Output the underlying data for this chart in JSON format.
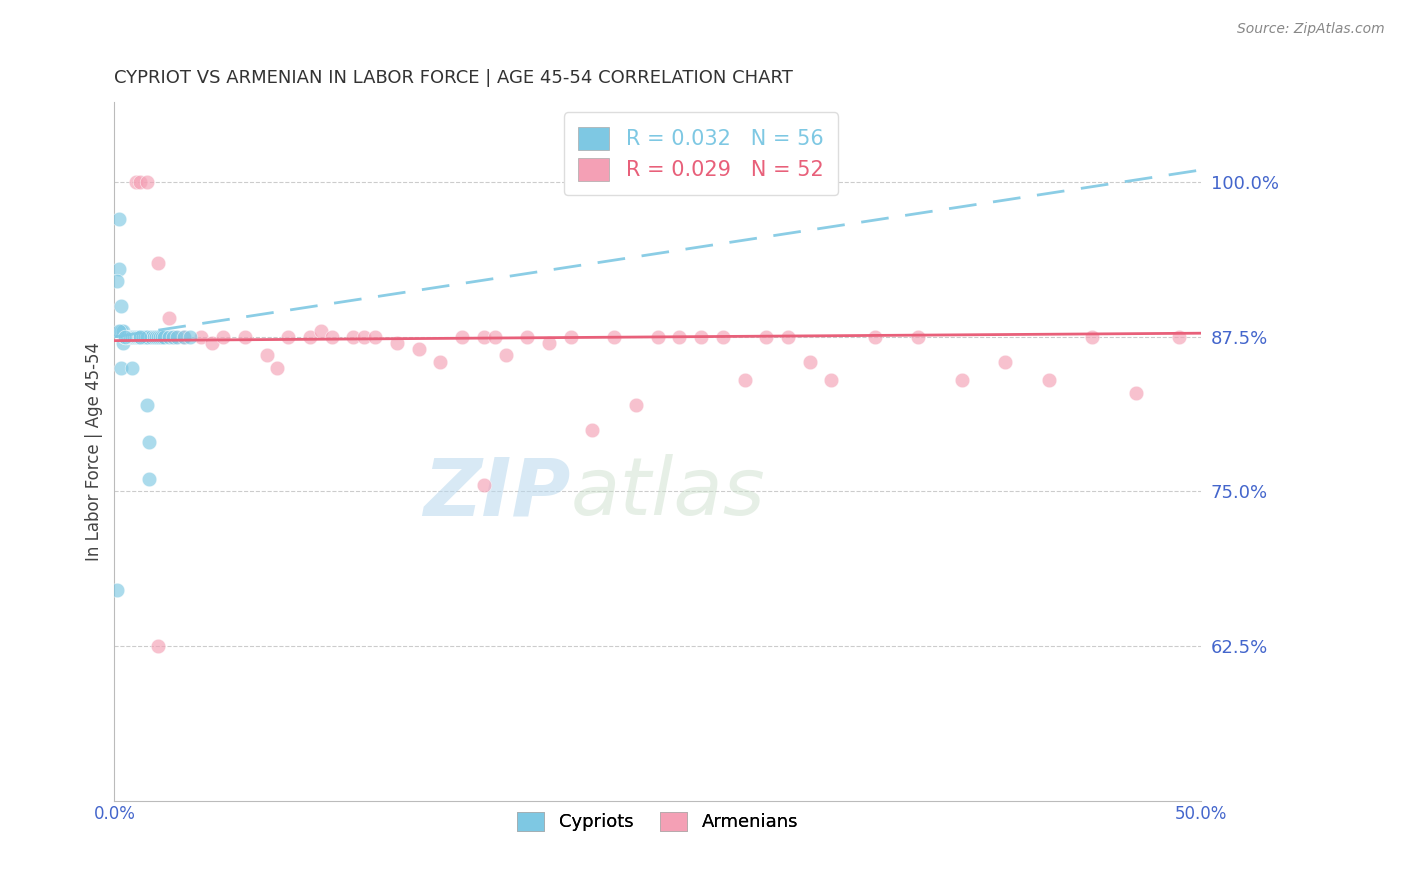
{
  "title": "CYPRIOT VS ARMENIAN IN LABOR FORCE | AGE 45-54 CORRELATION CHART",
  "source": "Source: ZipAtlas.com",
  "ylabel": "In Labor Force | Age 45-54",
  "xlim": [
    0.0,
    0.5
  ],
  "ylim": [
    0.5,
    1.065
  ],
  "xtick_positions": [
    0.0,
    0.1,
    0.2,
    0.3,
    0.4,
    0.5
  ],
  "xticklabels_visible": [
    "0.0%",
    "",
    "",
    "",
    "",
    "50.0%"
  ],
  "ytick_positions": [
    0.625,
    0.75,
    0.875,
    1.0
  ],
  "yticklabels": [
    "62.5%",
    "75.0%",
    "87.5%",
    "100.0%"
  ],
  "grid_color": "#cccccc",
  "background_color": "#ffffff",
  "cypriot_color": "#7ec8e3",
  "armenian_color": "#f4a0b5",
  "cypriot_line_color": "#7ec8e3",
  "armenian_line_color": "#e8607a",
  "cypriot_R": 0.032,
  "cypriot_N": 56,
  "armenian_R": 0.029,
  "armenian_N": 52,
  "legend_label_cypriot": "Cypriots",
  "legend_label_armenian": "Armenians",
  "axis_color": "#4466cc",
  "watermark_zip": "ZIP",
  "watermark_atlas": "atlas",
  "cypriot_x": [
    0.001,
    0.002,
    0.002,
    0.003,
    0.003,
    0.004,
    0.004,
    0.005,
    0.005,
    0.006,
    0.006,
    0.007,
    0.007,
    0.007,
    0.008,
    0.008,
    0.008,
    0.009,
    0.009,
    0.01,
    0.01,
    0.01,
    0.011,
    0.011,
    0.011,
    0.012,
    0.012,
    0.012,
    0.013,
    0.013,
    0.013,
    0.014,
    0.014,
    0.015,
    0.015,
    0.015,
    0.016,
    0.016,
    0.017,
    0.018,
    0.019,
    0.02,
    0.021,
    0.022,
    0.023,
    0.025,
    0.027,
    0.029,
    0.032,
    0.035,
    0.001,
    0.002,
    0.003,
    0.005,
    0.008,
    0.012
  ],
  "cypriot_y": [
    0.67,
    0.97,
    0.93,
    0.9,
    0.88,
    0.88,
    0.87,
    0.875,
    0.875,
    0.875,
    0.875,
    0.875,
    0.875,
    0.875,
    0.875,
    0.875,
    0.875,
    0.875,
    0.875,
    0.875,
    0.875,
    0.875,
    0.875,
    0.875,
    0.875,
    0.875,
    0.875,
    0.875,
    0.875,
    0.875,
    0.875,
    0.875,
    0.875,
    0.875,
    0.875,
    0.82,
    0.79,
    0.76,
    0.875,
    0.875,
    0.875,
    0.875,
    0.875,
    0.875,
    0.875,
    0.875,
    0.875,
    0.875,
    0.875,
    0.875,
    0.92,
    0.88,
    0.85,
    0.875,
    0.85,
    0.875
  ],
  "armenian_x": [
    0.01,
    0.012,
    0.015,
    0.02,
    0.025,
    0.028,
    0.032,
    0.04,
    0.045,
    0.05,
    0.06,
    0.07,
    0.075,
    0.08,
    0.09,
    0.095,
    0.1,
    0.11,
    0.115,
    0.12,
    0.13,
    0.14,
    0.15,
    0.16,
    0.17,
    0.175,
    0.18,
    0.19,
    0.2,
    0.21,
    0.22,
    0.23,
    0.24,
    0.25,
    0.26,
    0.27,
    0.28,
    0.29,
    0.3,
    0.31,
    0.32,
    0.33,
    0.35,
    0.37,
    0.39,
    0.41,
    0.43,
    0.45,
    0.47,
    0.49,
    0.02,
    0.17
  ],
  "armenian_y": [
    1.0,
    1.0,
    1.0,
    0.935,
    0.89,
    0.875,
    0.875,
    0.875,
    0.87,
    0.875,
    0.875,
    0.86,
    0.85,
    0.875,
    0.875,
    0.88,
    0.875,
    0.875,
    0.875,
    0.875,
    0.87,
    0.865,
    0.855,
    0.875,
    0.875,
    0.875,
    0.86,
    0.875,
    0.87,
    0.875,
    0.8,
    0.875,
    0.82,
    0.875,
    0.875,
    0.875,
    0.875,
    0.84,
    0.875,
    0.875,
    0.855,
    0.84,
    0.875,
    0.875,
    0.84,
    0.855,
    0.84,
    0.875,
    0.83,
    0.875,
    0.625,
    0.755
  ]
}
